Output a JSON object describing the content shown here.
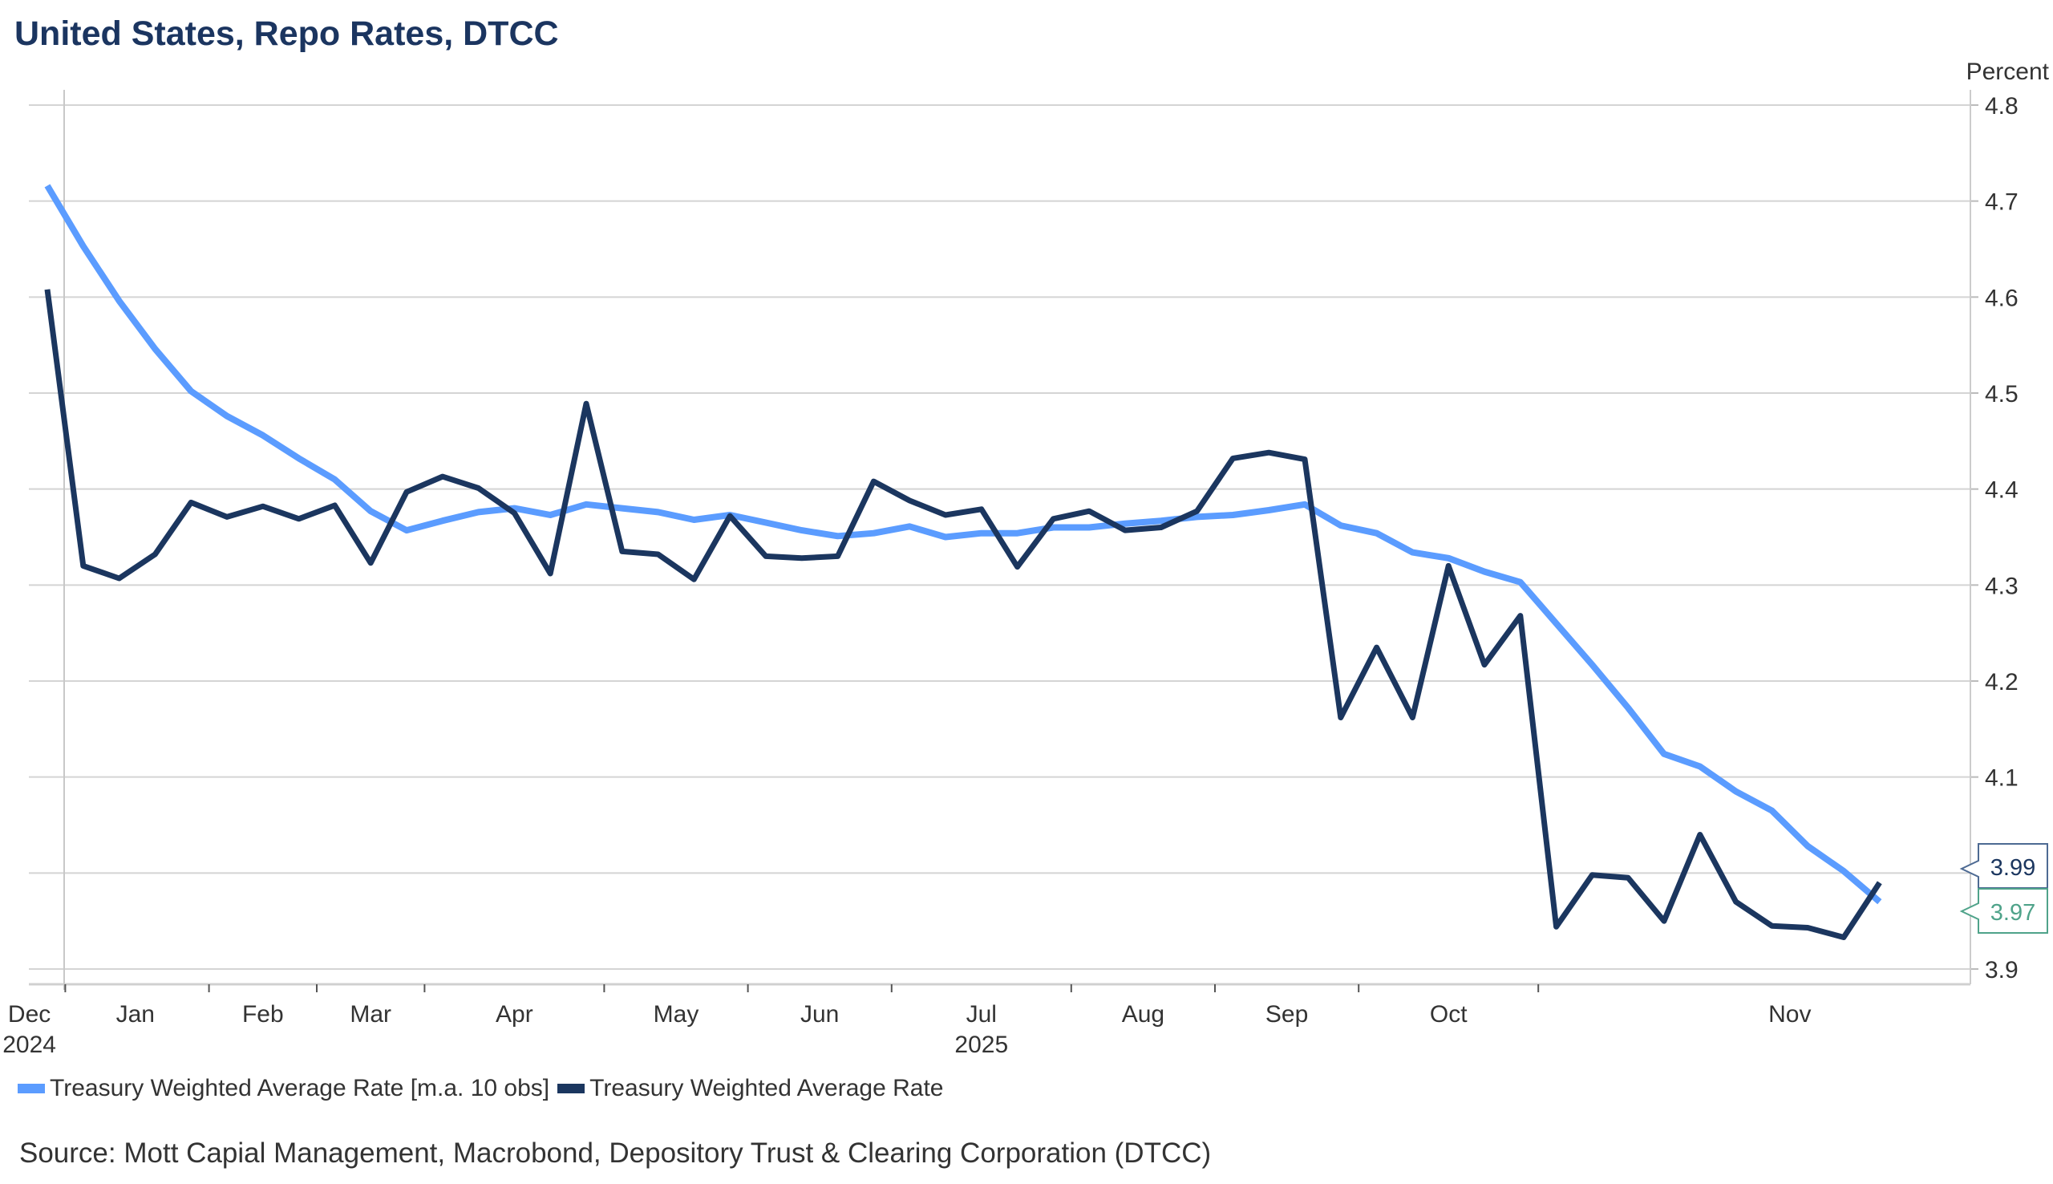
{
  "title": "United States, Repo Rates, DTCC",
  "source": "Source: Mott Capial Management, Macrobond, Depository Trust & Clearing Corporation (DTCC)",
  "chart_data": {
    "type": "line",
    "title": "United States, Repo Rates, DTCC",
    "ylabel": "Percent",
    "ylim": [
      3.9,
      4.8
    ],
    "yticks": [
      3.9,
      4.0,
      4.1,
      4.2,
      4.3,
      4.4,
      4.5,
      4.6,
      4.7,
      4.8
    ],
    "ytick_labels": [
      "3.9",
      "",
      "4.1",
      "4.2",
      "4.3",
      "4.4",
      "4.5",
      "4.6",
      "4.7",
      "4.8"
    ],
    "y_axis_side": "right",
    "grid": true,
    "legend_position": "bottom-left",
    "x_frequency": "weekly",
    "x_month_labels": [
      {
        "label": "Dec",
        "year": "2024",
        "at": -0.5
      },
      {
        "label": "Jan",
        "at": 2.45
      },
      {
        "label": "Feb",
        "at": 6
      },
      {
        "label": "Mar",
        "at": 9
      },
      {
        "label": "Apr",
        "at": 13
      },
      {
        "label": "May",
        "at": 17.5
      },
      {
        "label": "Jun",
        "at": 21.5
      },
      {
        "label": "Jul",
        "year": "2025",
        "at": 26
      },
      {
        "label": "Aug",
        "at": 30.5
      },
      {
        "label": "Sep",
        "at": 34.5
      },
      {
        "label": "Oct",
        "at": 39
      },
      {
        "label": "Nov",
        "at": 48.5
      }
    ],
    "x_ticks": [
      0.5,
      4.5,
      7.5,
      10.5,
      15.5,
      19.5,
      23.5,
      28.5,
      32.5,
      36.5,
      41.5
    ],
    "series": [
      {
        "name": "Treasury Weighted Average Rate [m.a. 10 obs]",
        "color": "#5b9cff",
        "last_value_label": "3.97",
        "label_color": "#4fa38a",
        "values": [
          4.716,
          4.653,
          4.596,
          4.546,
          4.502,
          4.476,
          4.456,
          4.432,
          4.41,
          4.377,
          4.357,
          4.367,
          4.376,
          4.38,
          4.373,
          4.384,
          4.38,
          4.376,
          4.368,
          4.373,
          4.365,
          4.357,
          4.351,
          4.354,
          4.361,
          4.35,
          4.354,
          4.354,
          4.36,
          4.36,
          4.364,
          4.367,
          4.371,
          4.373,
          4.378,
          4.384,
          4.362,
          4.354,
          4.334,
          4.328,
          4.314,
          4.303,
          4.26,
          4.217,
          4.172,
          4.124,
          4.111,
          4.085,
          4.065,
          4.028,
          4.002,
          3.97
        ]
      },
      {
        "name": "Treasury Weighted Average Rate",
        "color": "#1b365f",
        "last_value_label": "3.99",
        "label_color": "#1b365f",
        "values": [
          4.608,
          4.32,
          4.307,
          4.332,
          4.386,
          4.371,
          4.382,
          4.369,
          4.383,
          4.323,
          4.397,
          4.413,
          4.401,
          4.375,
          4.312,
          4.489,
          4.335,
          4.332,
          4.306,
          4.372,
          4.33,
          4.328,
          4.33,
          4.408,
          4.388,
          4.373,
          4.379,
          4.319,
          4.369,
          4.377,
          4.357,
          4.36,
          4.377,
          4.432,
          4.438,
          4.431,
          4.162,
          4.235,
          4.162,
          4.32,
          4.217,
          4.268,
          3.944,
          3.998,
          3.995,
          3.95,
          4.04,
          3.97,
          3.945,
          3.943,
          3.933,
          3.99
        ]
      }
    ]
  }
}
